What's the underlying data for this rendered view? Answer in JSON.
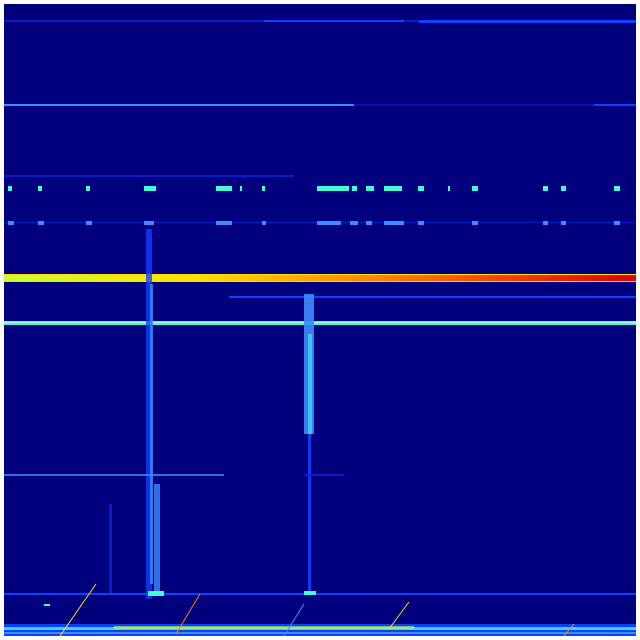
{
  "spectrogram": {
    "colormap": "jet",
    "colors": {
      "background": "#00007f",
      "faint_blue": "#0a1cc8",
      "blue": "#1040ff",
      "light_blue": "#3c8cff",
      "cyan": "#40ffd8",
      "green_yellow": "#c8ff30",
      "yellow": "#ffe000",
      "orange": "#ff8000",
      "red": "#e00000"
    }
  }
}
